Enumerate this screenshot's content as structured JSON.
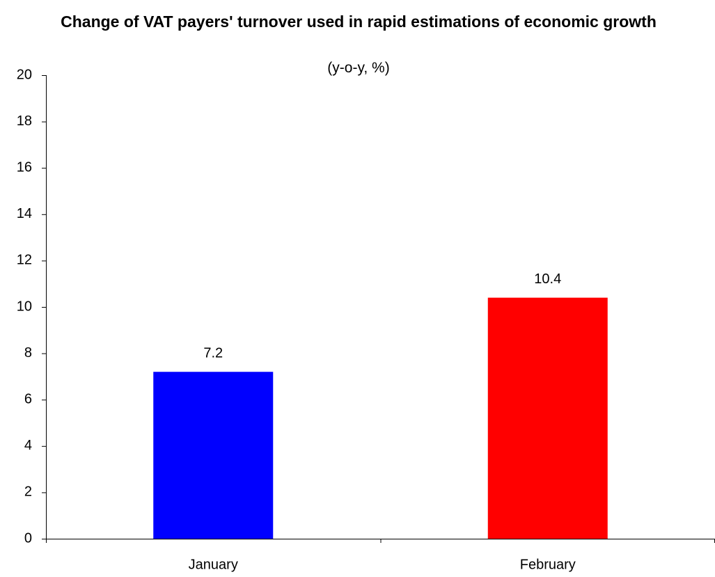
{
  "chart_data": {
    "type": "bar",
    "title": "Change of VAT payers' turnover used in rapid estimations of economic growth",
    "subtitle": "(y-o-y, %)",
    "categories": [
      "January",
      "February"
    ],
    "values": [
      7.2,
      10.4
    ],
    "colors": [
      "#0000ff",
      "#ff0000"
    ],
    "ylim": [
      0,
      20
    ],
    "yticks": [
      0,
      2,
      4,
      6,
      8,
      10,
      12,
      14,
      16,
      18,
      20
    ],
    "grid": false
  }
}
